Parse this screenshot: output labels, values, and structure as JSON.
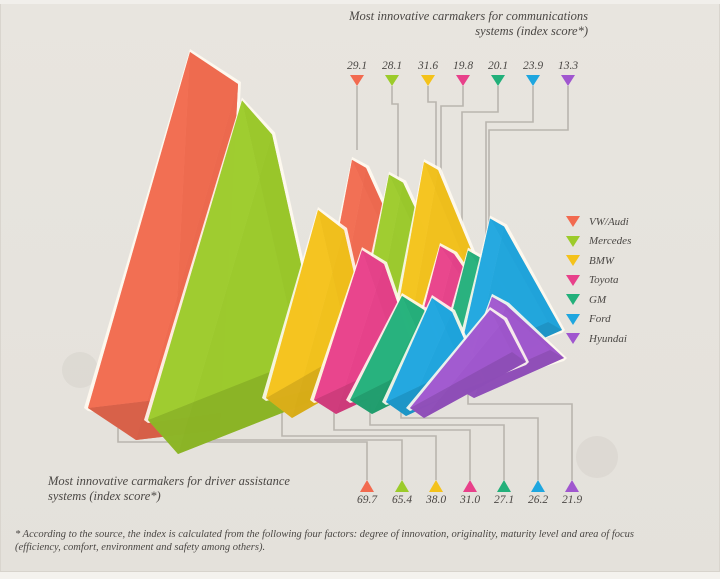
{
  "chart_data": {
    "type": "bar",
    "subtype": "3d-triangle-prisms",
    "categories": [
      "VW/Audi",
      "Mercedes",
      "BMW",
      "Toyota",
      "GM",
      "Ford",
      "Hyundai"
    ],
    "colors": [
      "#f26a4f",
      "#9ccb2a",
      "#f4c21a",
      "#e8408a",
      "#22b07a",
      "#1ea6df",
      "#a056cf"
    ],
    "series": [
      {
        "name": "Most innovative carmakers for communications systems (index score*)",
        "values": [
          29.1,
          28.1,
          31.6,
          19.8,
          20.1,
          23.9,
          13.3
        ],
        "labels": [
          "29.1",
          "28.1",
          "31.6",
          "19.8",
          "20.1",
          "23.9",
          "13.3"
        ]
      },
      {
        "name": "Most innovative carmakers for driver assistance systems (index score*)",
        "values": [
          69.7,
          65.4,
          38.0,
          31.0,
          27.1,
          26.2,
          21.9
        ],
        "labels": [
          "69.7",
          "65.4",
          "38.0",
          "31.0",
          "27.1",
          "26.2",
          "21.9"
        ]
      }
    ],
    "title_top": "Most innovative carmakers for communications systems (index score*)",
    "title_bottom": "Most innovative carmakers for driver assistance systems (index score*)",
    "legend_position": "right",
    "grid": false
  },
  "titles": {
    "top_line1": "Most innovative carmakers for communications",
    "top_line2": "systems (index score*)",
    "bottom_line1": "Most innovative carmakers for driver assistance",
    "bottom_line2": "systems (index score*)"
  },
  "legend": {
    "items": [
      {
        "label": "VW/Audi",
        "color": "#f26a4f"
      },
      {
        "label": "Mercedes",
        "color": "#9ccb2a"
      },
      {
        "label": "BMW",
        "color": "#f4c21a"
      },
      {
        "label": "Toyota",
        "color": "#e8408a"
      },
      {
        "label": "GM",
        "color": "#22b07a"
      },
      {
        "label": "Ford",
        "color": "#1ea6df"
      },
      {
        "label": "Hyundai",
        "color": "#a056cf"
      }
    ]
  },
  "top_values": {
    "v0": "29.1",
    "v1": "28.1",
    "v2": "31.6",
    "v3": "19.8",
    "v4": "20.1",
    "v5": "23.9",
    "v6": "13.3"
  },
  "bottom_values": {
    "v0": "69.7",
    "v1": "65.4",
    "v2": "38.0",
    "v3": "31.0",
    "v4": "27.1",
    "v5": "26.2",
    "v6": "21.9"
  },
  "footnote": {
    "line1": "* According to the source, the index is calculated from the following four factors: degree of innovation, originality, maturity level and area of focus",
    "line2": "(efficiency, comfort, environment and safety among others)."
  }
}
